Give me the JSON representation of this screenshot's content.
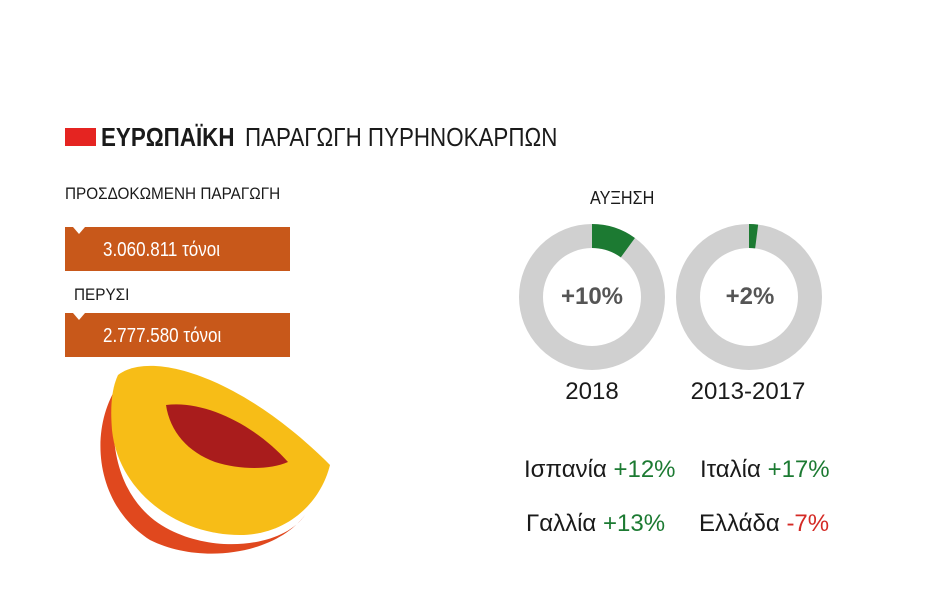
{
  "title": {
    "bold": "ΕΥΡΩΠΑΪΚΗ",
    "regular": "ΠΑΡΑΓΩΓΗ ΠΥΡΗΝΟΚΑΡΠΩΝ",
    "accent_color": "#e52421"
  },
  "production": {
    "expected_label": "ΠΡΟΣΔΟΚΩΜΕΝΗ ΠΑΡΑΓΩΓΗ",
    "expected_value": "3.060.811 τόνοι",
    "last_year_label": "ΠΕΡΥΣΙ",
    "last_year_value": "2.777.580 τόνοι",
    "box_color": "#c8581a"
  },
  "growth": {
    "label": "ΑΥΞΗΣΗ"
  },
  "chart_data": {
    "type": "pie",
    "style": "donut",
    "items": [
      {
        "label": "2018",
        "center_text": "+10%",
        "value": 10
      },
      {
        "label": "2013-2017",
        "center_text": "+2%",
        "value": 2
      }
    ],
    "fill_color": "#1c7a32",
    "track_color": "#d0d0d0"
  },
  "countries": [
    {
      "name": "Ισπανία",
      "change": "+12%",
      "sign": "pos"
    },
    {
      "name": "Ιταλία",
      "change": "+17%",
      "sign": "pos"
    },
    {
      "name": "Γαλλία",
      "change": "+13%",
      "sign": "pos"
    },
    {
      "name": "Ελλάδα",
      "change": "-7%",
      "sign": "neg"
    }
  ],
  "colors": {
    "positive": "#1c7a32",
    "negative": "#d42a25",
    "peach_outer": "#e0481e",
    "peach_flesh": "#f7bd17",
    "peach_pit": "#a91c1c"
  },
  "icons": [
    "peach-slice-icon"
  ]
}
